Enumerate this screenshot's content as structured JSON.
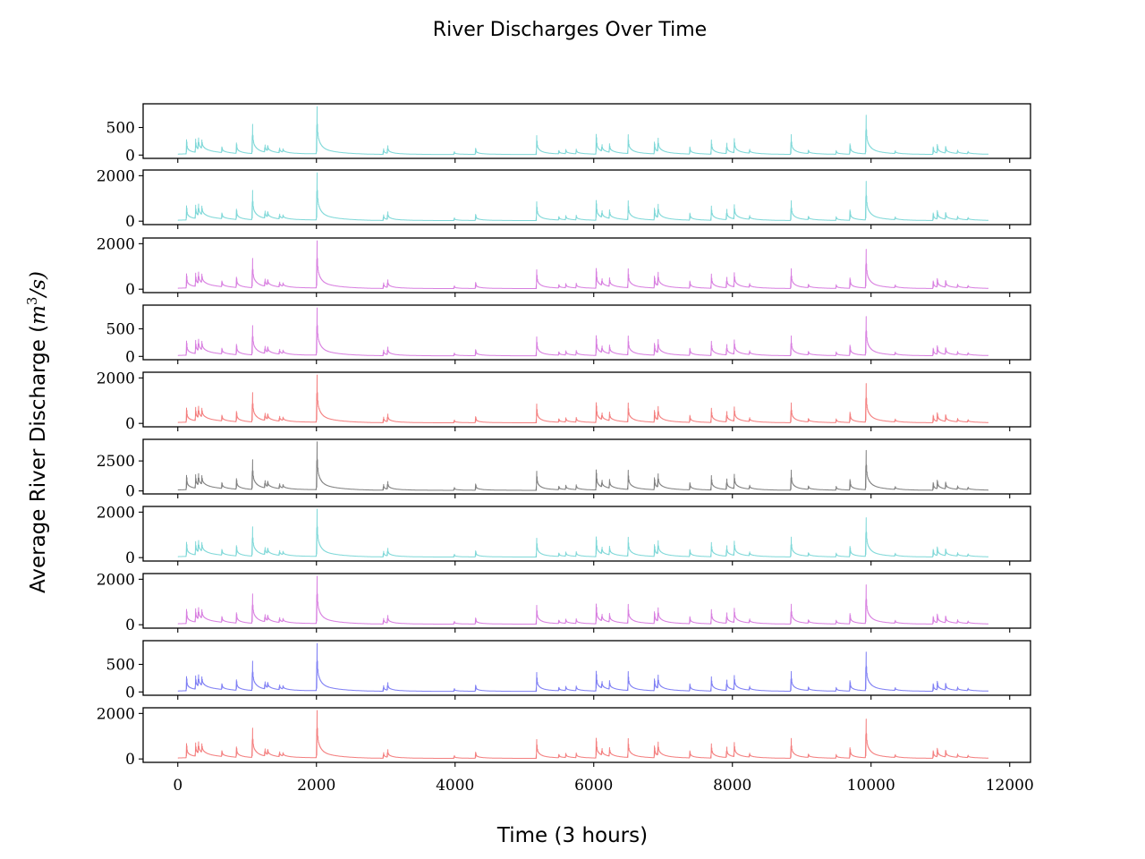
{
  "chart_data": {
    "type": "line",
    "title": "River Discharges Over Time",
    "xlabel": "Time (3 hours)",
    "ylabel_text": "Average River Discharge (",
    "ylabel_unit_base": "m",
    "ylabel_unit_exp": "3",
    "ylabel_unit_rest": "/s)",
    "xlim": [
      -500,
      12300
    ],
    "xticks": [
      0,
      2000,
      4000,
      6000,
      8000,
      10000,
      12000
    ],
    "n_points": 11700,
    "peaks": [
      {
        "x": 130,
        "h": 0.3
      },
      {
        "x": 260,
        "h": 0.28
      },
      {
        "x": 300,
        "h": 0.24
      },
      {
        "x": 350,
        "h": 0.18
      },
      {
        "x": 640,
        "h": 0.12
      },
      {
        "x": 850,
        "h": 0.22
      },
      {
        "x": 1080,
        "h": 0.62
      },
      {
        "x": 1260,
        "h": 0.15
      },
      {
        "x": 1300,
        "h": 0.11
      },
      {
        "x": 1470,
        "h": 0.1
      },
      {
        "x": 1520,
        "h": 0.07
      },
      {
        "x": 2010,
        "h": 1.0
      },
      {
        "x": 2970,
        "h": 0.12
      },
      {
        "x": 3030,
        "h": 0.16
      },
      {
        "x": 3990,
        "h": 0.06
      },
      {
        "x": 4300,
        "h": 0.13
      },
      {
        "x": 5180,
        "h": 0.4
      },
      {
        "x": 5500,
        "h": 0.07
      },
      {
        "x": 5600,
        "h": 0.09
      },
      {
        "x": 5750,
        "h": 0.1
      },
      {
        "x": 6040,
        "h": 0.42
      },
      {
        "x": 6120,
        "h": 0.14
      },
      {
        "x": 6230,
        "h": 0.18
      },
      {
        "x": 6500,
        "h": 0.4
      },
      {
        "x": 6880,
        "h": 0.25
      },
      {
        "x": 6930,
        "h": 0.28
      },
      {
        "x": 7390,
        "h": 0.15
      },
      {
        "x": 7700,
        "h": 0.3
      },
      {
        "x": 7920,
        "h": 0.22
      },
      {
        "x": 8030,
        "h": 0.3
      },
      {
        "x": 8250,
        "h": 0.08
      },
      {
        "x": 8850,
        "h": 0.42
      },
      {
        "x": 9100,
        "h": 0.07
      },
      {
        "x": 9500,
        "h": 0.08
      },
      {
        "x": 9700,
        "h": 0.22
      },
      {
        "x": 9930,
        "h": 0.82
      },
      {
        "x": 10350,
        "h": 0.06
      },
      {
        "x": 10900,
        "h": 0.16
      },
      {
        "x": 10960,
        "h": 0.18
      },
      {
        "x": 11080,
        "h": 0.14
      },
      {
        "x": 11250,
        "h": 0.07
      },
      {
        "x": 11400,
        "h": 0.05
      }
    ],
    "series": [
      {
        "color": "#7fd8d8",
        "ymin": -60,
        "ymax": 930,
        "peak": 880,
        "yticks": [
          0,
          500
        ]
      },
      {
        "color": "#7fd8d8",
        "ymin": -150,
        "ymax": 2250,
        "peak": 2130,
        "yticks": [
          0,
          2000
        ]
      },
      {
        "color": "#d87fe0",
        "ymin": -150,
        "ymax": 2250,
        "peak": 2130,
        "yticks": [
          0,
          2000
        ]
      },
      {
        "color": "#d87fe0",
        "ymin": -60,
        "ymax": 930,
        "peak": 880,
        "yticks": [
          0,
          500
        ]
      },
      {
        "color": "#f47f7f",
        "ymin": -150,
        "ymax": 2250,
        "peak": 2130,
        "yticks": [
          0,
          2000
        ]
      },
      {
        "color": "#808080",
        "ymin": -250,
        "ymax": 4300,
        "peak": 4100,
        "yticks": [
          0,
          2500
        ]
      },
      {
        "color": "#7fd8d8",
        "ymin": -150,
        "ymax": 2250,
        "peak": 2130,
        "yticks": [
          0,
          2000
        ]
      },
      {
        "color": "#d87fe0",
        "ymin": -150,
        "ymax": 2250,
        "peak": 2130,
        "yticks": [
          0,
          2000
        ]
      },
      {
        "color": "#7f7ff4",
        "ymin": -60,
        "ymax": 930,
        "peak": 880,
        "yticks": [
          0,
          500
        ]
      },
      {
        "color": "#f47f7f",
        "ymin": -150,
        "ymax": 2250,
        "peak": 2130,
        "yticks": [
          0,
          2000
        ]
      }
    ],
    "grid": false,
    "legend": "none"
  }
}
